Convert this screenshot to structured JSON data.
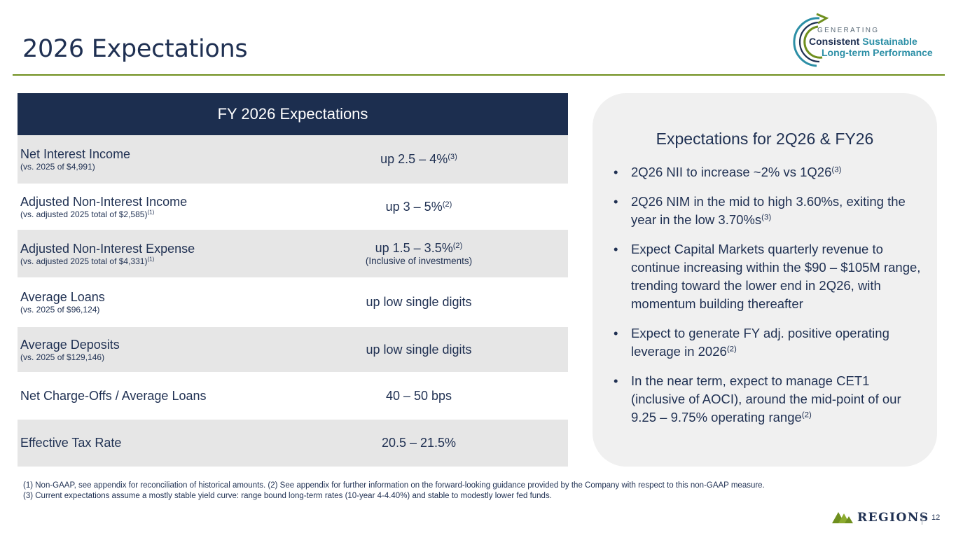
{
  "page_title": "2026 Expectations",
  "logo": {
    "generating": "GENERATING",
    "consistent": "Consistent",
    "sustainable": "Sustainable",
    "line2": "Long-term Performance"
  },
  "table": {
    "header": "FY 2026 Expectations",
    "rows": [
      {
        "label": "Net Interest Income",
        "sub": "(vs. 2025 of $4,991)",
        "sub_sup": "",
        "value": "up 2.5 – 4%",
        "value_sup": "(3)",
        "note": ""
      },
      {
        "label": "Adjusted Non-Interest Income",
        "sub": "(vs. adjusted 2025 total of $2,585)",
        "sub_sup": "(1)",
        "value": "up 3 – 5%",
        "value_sup": "(2)",
        "note": ""
      },
      {
        "label": "Adjusted Non-Interest Expense",
        "sub": "(vs. adjusted 2025 total of $4,331)",
        "sub_sup": "(1)",
        "value": "up 1.5 – 3.5%",
        "value_sup": "(2)",
        "note": "(Inclusive of investments)"
      },
      {
        "label": "Average Loans",
        "sub": "(vs. 2025 of $96,124)",
        "sub_sup": "",
        "value": "up low single digits",
        "value_sup": "",
        "note": ""
      },
      {
        "label": "Average Deposits",
        "sub": "(vs. 2025 of $129,146)",
        "sub_sup": "",
        "value": "up low single digits",
        "value_sup": "",
        "note": ""
      },
      {
        "label": "Net Charge-Offs / Average Loans",
        "sub": "",
        "sub_sup": "",
        "value": "40 – 50 bps",
        "value_sup": "",
        "note": ""
      },
      {
        "label": "Effective Tax Rate",
        "sub": "",
        "sub_sup": "",
        "value": "20.5 – 21.5%",
        "value_sup": "",
        "note": ""
      }
    ]
  },
  "panel": {
    "title": "Expectations for 2Q26 & FY26",
    "bullet_char": "•",
    "items": [
      {
        "text": "2Q26 NII to increase ~2% vs 1Q26",
        "sup": "(3)"
      },
      {
        "text": "2Q26 NIM in the mid to high 3.60%s, exiting the year in the low 3.70%s",
        "sup": "(3)"
      },
      {
        "text": "Expect Capital Markets quarterly revenue to continue increasing within the $90 – $105M range, trending toward the lower end in 2Q26, with momentum building thereafter",
        "sup": ""
      },
      {
        "text": "Expect to generate FY adj. positive operating leverage in 2026",
        "sup": "(2)"
      },
      {
        "text": "In the near term, expect to manage CET1 (inclusive of AOCI), around the mid-point of our 9.25 – 9.75% operating range",
        "sup": "(2)"
      }
    ]
  },
  "footnotes": [
    "(1) Non-GAAP, see appendix for reconciliation of historical amounts. (2) See appendix for further information on the forward-looking guidance provided by the Company with respect to this non-GAAP measure.",
    "(3) Current expectations assume a mostly stable yield curve: range bound long-term rates (10-year 4-4.40%) and stable to modestly lower fed funds."
  ],
  "footer": {
    "brand": "REGIONS",
    "page_number": "12"
  },
  "colors": {
    "navy": "#1c2e4f",
    "green_rule": "#6f8f1e",
    "teal": "#2c8fa6",
    "row_shade": "#e6e6e6",
    "panel_bg": "#f0f0f0"
  }
}
